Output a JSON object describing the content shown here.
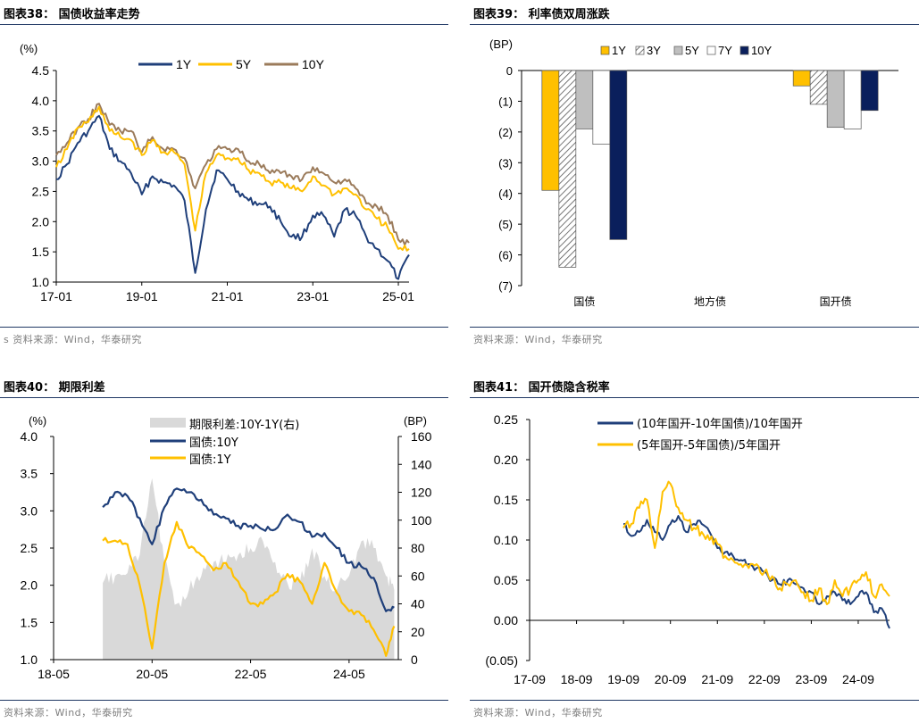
{
  "panels": [
    {
      "title": "图表38：  国债收益率走势",
      "source": "s 资料来源：Wind，华泰研究"
    },
    {
      "title": "图表39：  利率债双周涨跌",
      "source": "资料来源：Wind，华泰研究"
    },
    {
      "title": "图表40：  期限利差",
      "source": "资料来源：Wind，华泰研究"
    },
    {
      "title": "图表41：  国开债隐含税率",
      "source": "资料来源：Wind，华泰研究"
    }
  ],
  "colors": {
    "navy": "#1f3f7a",
    "gold": "#ffc000",
    "brown": "#9b7b5b",
    "darknavy": "#0a1f5c",
    "gray": "#bfbfbf",
    "area": "#d9d9d9",
    "rule": "#1f3864"
  },
  "chart_data": [
    {
      "type": "line",
      "unit_label": "(%)",
      "x_ticks": [
        "17-01",
        "19-01",
        "21-01",
        "23-01",
        "25-01"
      ],
      "x_range": [
        "2017-01",
        "2025-04"
      ],
      "ylim": [
        1.0,
        4.5
      ],
      "y_ticks": [
        "1.0",
        "1.5",
        "2.0",
        "2.5",
        "3.0",
        "3.5",
        "4.0",
        "4.5"
      ],
      "legend": "top",
      "x": [
        "2017-01",
        "2017-04",
        "2017-07",
        "2017-10",
        "2018-01",
        "2018-04",
        "2018-07",
        "2018-10",
        "2019-01",
        "2019-04",
        "2019-07",
        "2019-10",
        "2020-01",
        "2020-04",
        "2020-07",
        "2020-10",
        "2021-01",
        "2021-04",
        "2021-07",
        "2021-10",
        "2022-01",
        "2022-04",
        "2022-07",
        "2022-10",
        "2023-01",
        "2023-04",
        "2023-07",
        "2023-10",
        "2024-01",
        "2024-04",
        "2024-07",
        "2024-10",
        "2025-01",
        "2025-04"
      ],
      "series": [
        {
          "name": "1Y",
          "color": "#1f3f7a",
          "values": [
            2.7,
            2.95,
            3.3,
            3.5,
            3.75,
            3.2,
            3.0,
            2.8,
            2.45,
            2.75,
            2.65,
            2.6,
            2.35,
            1.15,
            2.2,
            2.85,
            2.7,
            2.5,
            2.35,
            2.3,
            2.25,
            2.0,
            1.75,
            1.75,
            2.1,
            2.1,
            1.75,
            2.2,
            2.1,
            1.75,
            1.55,
            1.35,
            1.05,
            1.45
          ]
        },
        {
          "name": "5Y",
          "color": "#ffc000",
          "values": [
            2.9,
            3.2,
            3.55,
            3.65,
            3.9,
            3.5,
            3.4,
            3.35,
            3.1,
            3.35,
            3.15,
            3.15,
            2.95,
            1.85,
            2.8,
            3.1,
            3.05,
            3.05,
            2.85,
            2.8,
            2.65,
            2.65,
            2.55,
            2.5,
            2.75,
            2.6,
            2.45,
            2.55,
            2.45,
            2.2,
            2.05,
            1.9,
            1.55,
            1.55
          ]
        },
        {
          "name": "10Y",
          "color": "#9b7b5b",
          "values": [
            3.1,
            3.3,
            3.55,
            3.7,
            3.95,
            3.6,
            3.5,
            3.5,
            3.15,
            3.4,
            3.2,
            3.2,
            3.05,
            2.55,
            2.95,
            3.2,
            3.2,
            3.2,
            3.0,
            2.95,
            2.8,
            2.8,
            2.75,
            2.7,
            2.9,
            2.8,
            2.65,
            2.7,
            2.55,
            2.3,
            2.25,
            2.1,
            1.7,
            1.65
          ]
        }
      ]
    },
    {
      "type": "bar",
      "unit_label": "(BP)",
      "categories": [
        "国债",
        "地方债",
        "国开债"
      ],
      "ylim": [
        -7,
        0
      ],
      "y_ticks": [
        "0",
        "(1)",
        "(2)",
        "(3)",
        "(4)",
        "(5)",
        "(6)",
        "(7)"
      ],
      "legend": "top",
      "series": [
        {
          "name": "1Y",
          "color": "#ffc000",
          "values": [
            -3.9,
            0,
            -0.5
          ]
        },
        {
          "name": "3Y",
          "color": "hatch",
          "values": [
            -6.4,
            0,
            -1.1
          ]
        },
        {
          "name": "5Y",
          "color": "#bfbfbf",
          "values": [
            -1.9,
            0,
            -1.85
          ]
        },
        {
          "name": "7Y",
          "color": "#ffffff",
          "values": [
            -2.4,
            0,
            -1.9
          ]
        },
        {
          "name": "10Y",
          "color": "#0a1f5c",
          "values": [
            -5.5,
            0,
            -1.3
          ]
        }
      ]
    },
    {
      "type": "line",
      "unit_label": "(%)",
      "unit_label_right": "(BP)",
      "x_ticks": [
        "18-05",
        "20-05",
        "22-05",
        "24-05"
      ],
      "x_range": [
        "2018-05",
        "2025-05"
      ],
      "ylim": [
        1.0,
        4.0
      ],
      "y_ticks": [
        "1.0",
        "1.5",
        "2.0",
        "2.5",
        "3.0",
        "3.5",
        "4.0"
      ],
      "y2lim": [
        0,
        160
      ],
      "y2_ticks": [
        "0",
        "20",
        "40",
        "60",
        "80",
        "100",
        "120",
        "140",
        "160"
      ],
      "legend": "top",
      "x": [
        "2019-05",
        "2019-08",
        "2019-11",
        "2020-02",
        "2020-05",
        "2020-08",
        "2020-11",
        "2021-02",
        "2021-05",
        "2021-08",
        "2021-11",
        "2022-02",
        "2022-05",
        "2022-08",
        "2022-11",
        "2023-02",
        "2023-05",
        "2023-08",
        "2023-11",
        "2024-02",
        "2024-05",
        "2024-08",
        "2024-11",
        "2025-02",
        "2025-04"
      ],
      "series": [
        {
          "name": "期限利差:10Y-1Y(右)",
          "color": "#d9d9d9",
          "type": "area",
          "values": [
            55,
            60,
            62,
            75,
            130,
            70,
            40,
            50,
            60,
            70,
            70,
            75,
            80,
            85,
            70,
            55,
            55,
            80,
            60,
            50,
            60,
            85,
            80,
            60,
            50
          ]
        },
        {
          "name": "国债:10Y",
          "color": "#1f3f7a",
          "values": [
            3.05,
            3.25,
            3.2,
            2.9,
            2.55,
            3.05,
            3.3,
            3.25,
            3.15,
            2.95,
            2.9,
            2.8,
            2.8,
            2.75,
            2.75,
            2.95,
            2.85,
            2.65,
            2.7,
            2.5,
            2.3,
            2.25,
            2.1,
            1.65,
            1.7
          ]
        },
        {
          "name": "国债:1Y",
          "color": "#ffc000",
          "values": [
            2.6,
            2.6,
            2.55,
            2.0,
            1.15,
            2.3,
            2.85,
            2.5,
            2.4,
            2.2,
            2.3,
            2.05,
            1.75,
            1.75,
            1.9,
            2.15,
            2.05,
            1.75,
            2.3,
            1.9,
            1.65,
            1.6,
            1.4,
            1.05,
            1.45
          ]
        }
      ]
    },
    {
      "type": "line",
      "x_ticks": [
        "17-09",
        "18-09",
        "19-09",
        "20-09",
        "21-09",
        "22-09",
        "23-09",
        "24-09"
      ],
      "x_range": [
        "2017-09",
        "2025-05"
      ],
      "ylim": [
        -0.05,
        0.25
      ],
      "y_ticks": [
        "(0.05)",
        "0.00",
        "0.05",
        "0.10",
        "0.15",
        "0.20",
        "0.25"
      ],
      "legend": "top",
      "x": [
        "2019-09",
        "2019-11",
        "2020-01",
        "2020-03",
        "2020-05",
        "2020-07",
        "2020-09",
        "2020-11",
        "2021-01",
        "2021-03",
        "2021-05",
        "2021-07",
        "2021-09",
        "2021-11",
        "2022-01",
        "2022-03",
        "2022-05",
        "2022-07",
        "2022-09",
        "2022-11",
        "2023-01",
        "2023-03",
        "2023-05",
        "2023-07",
        "2023-09",
        "2023-11",
        "2024-01",
        "2024-03",
        "2024-05",
        "2024-07",
        "2024-09",
        "2024-11",
        "2025-01",
        "2025-03",
        "2025-05"
      ],
      "series": [
        {
          "name": "(10年国开-10年国债)/10年国开",
          "color": "#1f3f7a",
          "values": [
            0.12,
            0.105,
            0.11,
            0.125,
            0.11,
            0.1,
            0.12,
            0.13,
            0.11,
            0.12,
            0.12,
            0.11,
            0.09,
            0.085,
            0.08,
            0.075,
            0.07,
            0.065,
            0.06,
            0.05,
            0.045,
            0.05,
            0.045,
            0.04,
            0.035,
            0.02,
            0.03,
            0.035,
            0.025,
            0.02,
            0.03,
            0.035,
            0.01,
            0.015,
            -0.01
          ]
        },
        {
          "name": "(5年国开-5年国债)/5年国开",
          "color": "#ffc000",
          "values": [
            0.115,
            0.12,
            0.14,
            0.15,
            0.09,
            0.16,
            0.17,
            0.14,
            0.125,
            0.115,
            0.11,
            0.1,
            0.095,
            0.08,
            0.075,
            0.07,
            0.065,
            0.07,
            0.06,
            0.055,
            0.04,
            0.045,
            0.05,
            0.035,
            0.025,
            0.04,
            0.02,
            0.05,
            0.03,
            0.04,
            0.05,
            0.06,
            0.03,
            0.045,
            0.03
          ]
        }
      ]
    }
  ]
}
